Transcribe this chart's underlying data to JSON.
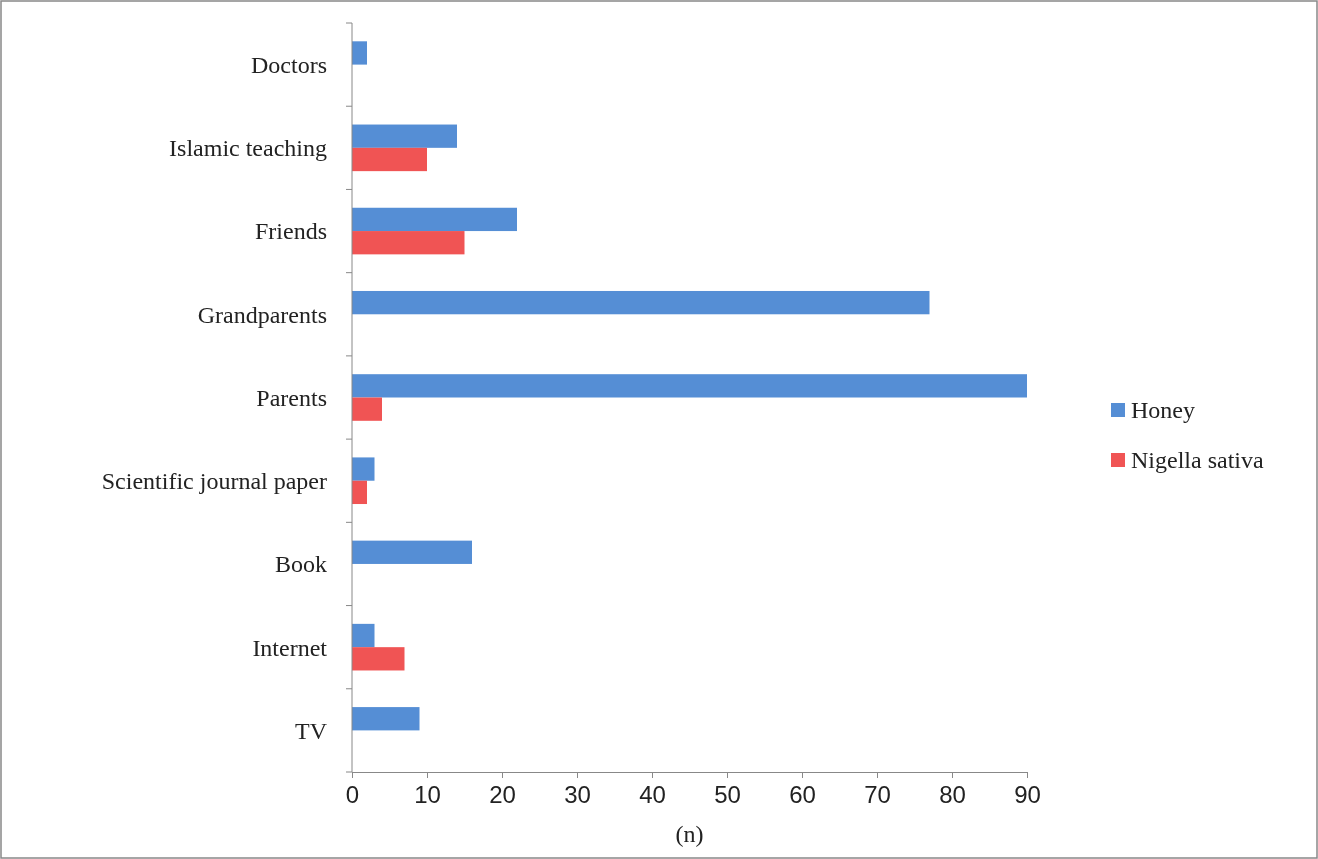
{
  "chart_data": {
    "type": "bar",
    "orientation": "horizontal",
    "categories": [
      "Doctors",
      "Islamic teaching",
      "Friends",
      "Grandparents",
      "Parents",
      "Scientific journal paper",
      "Book",
      "Internet",
      "TV"
    ],
    "series": [
      {
        "name": "Honey",
        "color": "#558ed5",
        "values": [
          2,
          14,
          22,
          77,
          90,
          3,
          16,
          3,
          9
        ]
      },
      {
        "name": "Nigella sativa",
        "color": "#f05454",
        "values": [
          null,
          10,
          15,
          null,
          4,
          2,
          null,
          7,
          null
        ]
      }
    ],
    "xlim": [
      0,
      90
    ],
    "xticks": [
      0,
      10,
      20,
      30,
      40,
      50,
      60,
      70,
      80,
      90
    ],
    "xlabel": "(n)",
    "grid": false,
    "legend": "right"
  }
}
